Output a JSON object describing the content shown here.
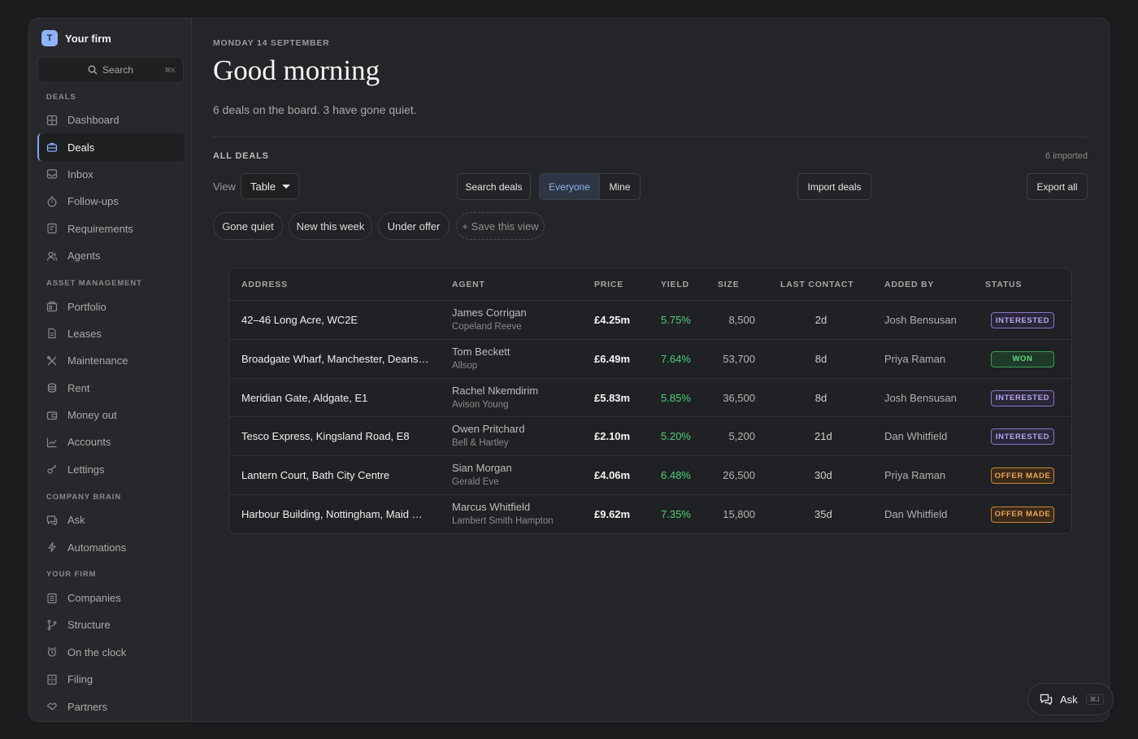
{
  "brand": {
    "logo_letter": "T",
    "name": "Your firm"
  },
  "search": {
    "label": "Search",
    "shortcut": "⌘K"
  },
  "sidebar": {
    "sections": [
      {
        "title": "DEALS",
        "items": [
          {
            "label": "Dashboard",
            "icon": "grid-icon"
          },
          {
            "label": "Deals",
            "icon": "briefcase-icon",
            "active": true
          },
          {
            "label": "Inbox",
            "icon": "inbox-icon"
          },
          {
            "label": "Follow-ups",
            "icon": "timer-icon"
          },
          {
            "label": "Requirements",
            "icon": "clipboard-icon"
          },
          {
            "label": "Agents",
            "icon": "agents-icon"
          }
        ]
      },
      {
        "title": "ASSET MANAGEMENT",
        "items": [
          {
            "label": "Portfolio",
            "icon": "portfolio-icon"
          },
          {
            "label": "Leases",
            "icon": "document-icon"
          },
          {
            "label": "Maintenance",
            "icon": "tools-icon"
          },
          {
            "label": "Rent",
            "icon": "coins-icon"
          },
          {
            "label": "Money out",
            "icon": "wallet-icon"
          },
          {
            "label": "Accounts",
            "icon": "chart-icon"
          },
          {
            "label": "Lettings",
            "icon": "key-icon"
          }
        ]
      },
      {
        "title": "COMPANY BRAIN",
        "items": [
          {
            "label": "Ask",
            "icon": "chat-icon"
          },
          {
            "label": "Automations",
            "icon": "bolt-icon"
          }
        ]
      },
      {
        "title": "YOUR FIRM",
        "items": [
          {
            "label": "Companies",
            "icon": "building-icon"
          },
          {
            "label": "Structure",
            "icon": "branch-icon"
          },
          {
            "label": "On the clock",
            "icon": "alarm-icon"
          },
          {
            "label": "Filing",
            "icon": "cabinet-icon"
          },
          {
            "label": "Partners",
            "icon": "handshake-icon"
          }
        ]
      }
    ]
  },
  "header": {
    "date": "MONDAY 14 SEPTEMBER",
    "greeting": "Good morning",
    "subtitle": "6 deals on the board. 3 have gone quiet."
  },
  "deals": {
    "title": "ALL DEALS",
    "imported": "6 imported",
    "view_label": "View",
    "view_value": "Table",
    "search_button": "Search deals",
    "segment": {
      "on": "Everyone",
      "off": "Mine"
    },
    "import_button": "Import deals",
    "export_button": "Export all",
    "chips": [
      "Gone quiet",
      "New this week",
      "Under offer"
    ],
    "save_view": "+ Save this view"
  },
  "table": {
    "headers": [
      "ADDRESS",
      "AGENT",
      "PRICE",
      "YIELD",
      "SIZE",
      "LAST CONTACT",
      "ADDED BY",
      "STATUS"
    ],
    "rows": [
      {
        "address": "42–46 Long Acre, WC2E",
        "agent": "James Corrigan",
        "firm": "Copeland Reeve",
        "price": "£4.25m",
        "yield": "5.75%",
        "size": "8,500",
        "last": "2d",
        "added": "Josh Bensusan",
        "status": "INTERESTED",
        "status_kind": "interested"
      },
      {
        "address": "Broadgate Wharf, Manchester, Deansg...",
        "agent": "Tom Beckett",
        "firm": "Allsop",
        "price": "£6.49m",
        "yield": "7.64%",
        "size": "53,700",
        "last": "8d",
        "added": "Priya Raman",
        "status": "WON",
        "status_kind": "won"
      },
      {
        "address": "Meridian Gate, Aldgate, E1",
        "agent": "Rachel Nkemdirim",
        "firm": "Avison Young",
        "price": "£5.83m",
        "yield": "5.85%",
        "size": "36,500",
        "last": "8d",
        "added": "Josh Bensusan",
        "status": "INTERESTED",
        "status_kind": "interested"
      },
      {
        "address": "Tesco Express, Kingsland Road, E8",
        "agent": "Owen Pritchard",
        "firm": "Bell & Hartley",
        "price": "£2.10m",
        "yield": "5.20%",
        "size": "5,200",
        "last": "21d",
        "added": "Dan Whitfield",
        "status": "INTERESTED",
        "status_kind": "interested"
      },
      {
        "address": "Lantern Court, Bath City Centre",
        "agent": "Sian Morgan",
        "firm": "Gerald Eve",
        "price": "£4.06m",
        "yield": "6.48%",
        "size": "26,500",
        "last": "30d",
        "added": "Priya Raman",
        "status": "OFFER MADE",
        "status_kind": "offer"
      },
      {
        "address": "Harbour Building, Nottingham, Maid Ma...",
        "agent": "Marcus Whitfield",
        "firm": "Lambert Smith Hampton",
        "price": "£9.62m",
        "yield": "7.35%",
        "size": "15,800",
        "last": "35d",
        "added": "Dan Whitfield",
        "status": "OFFER MADE",
        "status_kind": "offer"
      }
    ]
  },
  "ask_button": {
    "label": "Ask",
    "shortcut": "⌘J",
    "icon": "chat-icon"
  },
  "colors": {
    "accent": "#8fb3ff",
    "yield_green": "#4fd07a",
    "interested": "#b8a6ee",
    "won": "#5fd882",
    "offer": "#eaa55a"
  }
}
